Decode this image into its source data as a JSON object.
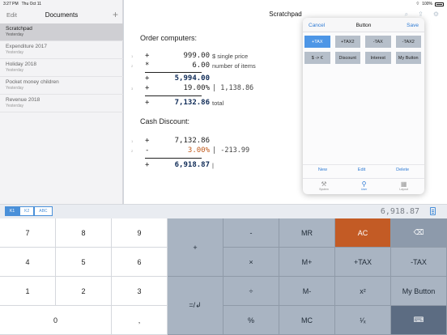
{
  "status": {
    "time": "3:27 PM",
    "date": "Thu Oct 11",
    "battery": "100%"
  },
  "sidebar": {
    "edit": "Edit",
    "title": "Documents",
    "add": "+",
    "docs": [
      {
        "name": "Scratchpad",
        "date": "Yesterday",
        "selected": true
      },
      {
        "name": "Expenditure 2017",
        "date": "Yesterday"
      },
      {
        "name": "Holiday 2018",
        "date": "Yesterday"
      },
      {
        "name": "Pocket money children",
        "date": "Yesterday"
      },
      {
        "name": "Revenue 2018",
        "date": "Yesterday"
      }
    ]
  },
  "main": {
    "title": "Scratchpad",
    "heading1": "Order computers:",
    "heading2": "Cash Discount:",
    "lines": [
      {
        "num": "1",
        "op": "+",
        "val": "999.00",
        "cmt": "$ single price"
      },
      {
        "num": "2",
        "op": "*",
        "val": "6.00",
        "cmt": "number of items"
      },
      {
        "num": "",
        "op": "+",
        "val": "5,994.00",
        "cmt": ""
      },
      {
        "num": "3",
        "op": "+",
        "val": "19.00%",
        "cmt": "| 1,138.86"
      },
      {
        "num": "",
        "op": "+",
        "val": "7,132.86",
        "cmt": "total"
      },
      {
        "num": "1",
        "op": "+",
        "val": "7,132.86",
        "cmt": ""
      },
      {
        "num": "2",
        "op": "-",
        "val": "3.00%",
        "cmt": "| -213.99"
      },
      {
        "num": "",
        "op": "+",
        "val": "6,918.87",
        "cmt": "|"
      }
    ]
  },
  "popover": {
    "cancel": "Cancel",
    "title": "Button",
    "save": "Save",
    "buttons": [
      "+TAX",
      "+TAX2",
      "-TAX",
      "-TAX2",
      "$ -> €",
      "Discount",
      "Interest",
      "My Button"
    ],
    "actions": [
      "New",
      "Edit",
      "Delete"
    ],
    "tabs": [
      "System",
      "User",
      "Layout"
    ]
  },
  "footer": {
    "registers": [
      "K1",
      "K2",
      "ABC"
    ],
    "result": "6,918.87"
  },
  "keypad": {
    "n7": "7",
    "n8": "8",
    "n9": "9",
    "n4": "4",
    "n5": "5",
    "n6": "6",
    "n1": "1",
    "n2": "2",
    "n3": "3",
    "n0": "0",
    "dot": ",",
    "minus": "-",
    "plus": "+",
    "times": "×",
    "divide": "÷",
    "equals": "=/↲",
    "percent": "%",
    "mr": "MR",
    "mplus": "M+",
    "mminus": "M-",
    "mc": "MC",
    "ac": "AC",
    "backspace": "⌫",
    "ptax": "+TAX",
    "mtax": "-TAX",
    "square": "x²",
    "mybutton": "My Button",
    "recip": "¹⁄ₓ",
    "keyboard": "⌨"
  },
  "colors": {
    "accent": "#4a90d9",
    "ac": "#c35b25",
    "keypad": "#a9b4c2",
    "number_keys": "#ffffff"
  }
}
